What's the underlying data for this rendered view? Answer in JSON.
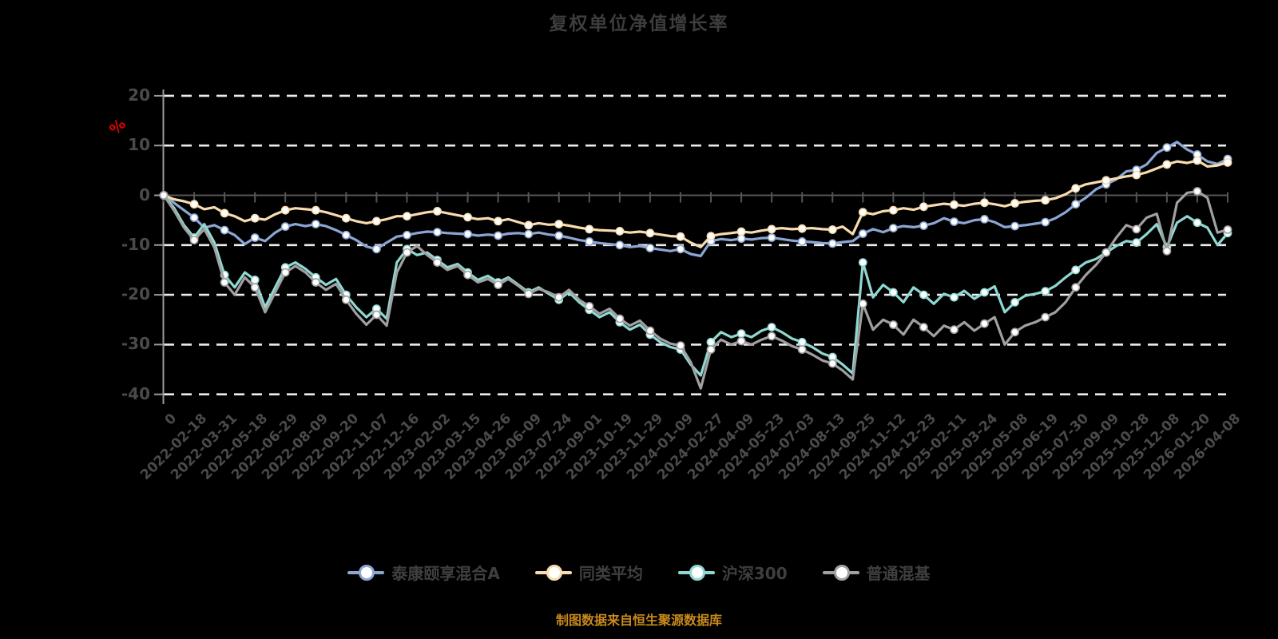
{
  "title": "复权单位净值增长率",
  "y_axis_unit": "%",
  "footer_note": "制图数据来自恒生聚源数据库",
  "colors": {
    "background": "#000000",
    "title_text": "#3d3d3d",
    "axis_label_text": "#4a4a4a",
    "unit_label_red": "#e00000",
    "footer_orange": "#c8891c",
    "gridline": "#ececec",
    "y_axis_line": "#9a9a9a",
    "x_axis_line": "#555555",
    "legend_text": "#3f3f3f"
  },
  "chart_data": {
    "type": "line",
    "title": "复权单位净值增长率",
    "xlabel": "",
    "ylabel": "%",
    "ylim": [
      -40,
      20
    ],
    "y_ticks": [
      20,
      10,
      0,
      -10,
      -20,
      -30,
      -40
    ],
    "grid": "horizontal dashed white lines, x axis drawn at 0 with tick marks",
    "legend_position": "bottom",
    "x_tick_labels": [
      "0",
      "2022-02-18",
      "2022-03-31",
      "2022-05-18",
      "2022-06-29",
      "2022-08-09",
      "2022-09-20",
      "2022-11-07",
      "2022-12-16",
      "2023-02-02",
      "2023-03-15",
      "2023-04-26",
      "2023-06-09",
      "2023-07-24",
      "2023-09-01",
      "2023-10-19",
      "2023-11-29",
      "2024-01-09",
      "2024-02-27",
      "2024-04-09",
      "2024-05-23",
      "2024-07-03",
      "2024-08-13",
      "2024-09-25",
      "2024-11-12",
      "2024-12-23",
      "2025-02-11",
      "2025-03-24",
      "2025-05-08",
      "2025-06-19",
      "2025-07-30",
      "2025-09-09",
      "2025-10-28",
      "2025-12-08",
      "2026-01-20",
      "2026-04-08"
    ],
    "sampling_note": "values are % growth sampled at 3 evenly spaced points per x-tick interval (106 points spanning the 36 ticks)",
    "series": [
      {
        "name": "泰康颐享混合A",
        "color": "#8ca6d4",
        "values": [
          0,
          -1.5,
          -3,
          -4.5,
          -6.5,
          -6,
          -7,
          -8,
          -9.8,
          -8.5,
          -9.2,
          -7.5,
          -6.3,
          -5.8,
          -6.2,
          -5.8,
          -6.2,
          -7,
          -8,
          -9,
          -10.3,
          -10.8,
          -9.5,
          -8.3,
          -8,
          -7.6,
          -7.3,
          -7.4,
          -7.6,
          -7.7,
          -7.8,
          -8.1,
          -7.9,
          -8.1,
          -7.7,
          -7.6,
          -7.8,
          -7.5,
          -7.9,
          -8.1,
          -8.5,
          -9,
          -9.3,
          -9.6,
          -9.8,
          -10,
          -10.4,
          -10.2,
          -10.6,
          -10.9,
          -11.2,
          -10.8,
          -11.8,
          -12.2,
          -9.2,
          -8.8,
          -9,
          -8.7,
          -8.9,
          -8.6,
          -8.5,
          -8.8,
          -9.1,
          -9.3,
          -9.4,
          -9.6,
          -9.7,
          -9.4,
          -9.2,
          -7.7,
          -6.8,
          -7.4,
          -6.6,
          -6.2,
          -6.4,
          -6.1,
          -5.6,
          -4.6,
          -5.3,
          -5.6,
          -5,
          -4.8,
          -5.4,
          -6.4,
          -6.2,
          -6,
          -5.7,
          -5.4,
          -4.6,
          -3.4,
          -1.8,
          -0.5,
          1.2,
          2.2,
          3.2,
          4.8,
          5.1,
          6.2,
          8.5,
          9.6,
          10.7,
          9.2,
          8.2,
          6.8,
          6.3,
          7.3
        ]
      },
      {
        "name": "同类平均",
        "color": "#f8dcae",
        "values": [
          0,
          -0.8,
          -1.2,
          -1.8,
          -2.8,
          -2.4,
          -3.6,
          -4.2,
          -5.2,
          -4.6,
          -4.9,
          -3.8,
          -3,
          -2.6,
          -2.8,
          -3,
          -3.4,
          -4,
          -4.6,
          -5.2,
          -5.6,
          -5.2,
          -4.8,
          -4.2,
          -4.2,
          -3.8,
          -3.4,
          -3.2,
          -3.6,
          -4,
          -4.4,
          -4.8,
          -4.6,
          -5.2,
          -4.8,
          -5.4,
          -6,
          -5.6,
          -5.9,
          -5.8,
          -6.1,
          -6.5,
          -6.8,
          -7,
          -7.1,
          -7.2,
          -7.5,
          -7.3,
          -7.6,
          -7.9,
          -8.2,
          -8.3,
          -9.5,
          -10.4,
          -8.2,
          -7.8,
          -7.6,
          -7.3,
          -7.5,
          -7.1,
          -6.8,
          -6.6,
          -6.8,
          -6.7,
          -6.6,
          -6.8,
          -6.9,
          -6.3,
          -7.8,
          -3.4,
          -3.8,
          -3.2,
          -3,
          -2.6,
          -2.9,
          -2.3,
          -2,
          -1.7,
          -1.9,
          -2.1,
          -1.7,
          -1.5,
          -1.8,
          -2.2,
          -1.6,
          -1.3,
          -1.1,
          -1,
          -0.6,
          0.2,
          1.4,
          2.2,
          2.6,
          3,
          3.4,
          3.8,
          4.1,
          4.6,
          5.4,
          6.2,
          6.8,
          6.5,
          7,
          5.8,
          6,
          6.6
        ]
      },
      {
        "name": "沪深300",
        "color": "#8fd8d2",
        "values": [
          0,
          -2.5,
          -6,
          -8.5,
          -5.8,
          -9.5,
          -16,
          -18.5,
          -15.5,
          -17,
          -22.5,
          -18.5,
          -14.5,
          -13.5,
          -14.8,
          -16.5,
          -18,
          -16.8,
          -20,
          -22.5,
          -24.5,
          -22.8,
          -24.8,
          -13.5,
          -10.8,
          -12,
          -11.5,
          -13,
          -14.5,
          -13.8,
          -15.5,
          -17,
          -16.2,
          -17.5,
          -16.5,
          -18,
          -19.5,
          -18.5,
          -19.8,
          -21,
          -19.5,
          -21.5,
          -23,
          -24.5,
          -23.5,
          -25.5,
          -27,
          -26,
          -28,
          -29.5,
          -30.5,
          -31,
          -34,
          -36.2,
          -29.5,
          -27.5,
          -28.5,
          -27.8,
          -28.5,
          -27.2,
          -26.5,
          -27.5,
          -28.8,
          -29.5,
          -30.5,
          -31.8,
          -32.5,
          -34,
          -35.8,
          -13.5,
          -20.5,
          -18,
          -19.5,
          -21.5,
          -18.5,
          -20,
          -21.8,
          -19.8,
          -20.5,
          -19.2,
          -20.8,
          -19.5,
          -18.3,
          -23.5,
          -21.5,
          -20.2,
          -19.8,
          -19.3,
          -18.2,
          -16.5,
          -15,
          -13.5,
          -12.8,
          -11.5,
          -10.2,
          -9.2,
          -9.5,
          -7.8,
          -5.8,
          -10.4,
          -5.5,
          -4.2,
          -5.5,
          -6.5,
          -10,
          -7.6
        ]
      },
      {
        "name": "普通混基",
        "color": "#a0a0a0",
        "values": [
          0,
          -3,
          -6.5,
          -9,
          -6.8,
          -10.5,
          -17.5,
          -20,
          -16.5,
          -18.5,
          -23.5,
          -19.5,
          -15.5,
          -14.2,
          -15.5,
          -17.5,
          -19,
          -17.8,
          -21,
          -23.8,
          -26,
          -24,
          -26.2,
          -15.5,
          -11.5,
          -10.2,
          -12,
          -13.5,
          -15,
          -14.2,
          -16,
          -17.5,
          -16.8,
          -18,
          -16.8,
          -18.2,
          -19.8,
          -18.8,
          -19.5,
          -20.5,
          -19,
          -21,
          -22.3,
          -23.8,
          -22.8,
          -24.8,
          -26.2,
          -25.2,
          -27.2,
          -28.8,
          -29.8,
          -30.2,
          -33.5,
          -38.8,
          -31,
          -29,
          -30,
          -29.3,
          -30,
          -29,
          -28.3,
          -29.2,
          -30.3,
          -31,
          -32,
          -33.2,
          -33.8,
          -35.2,
          -37,
          -21.8,
          -27,
          -25,
          -26,
          -28,
          -25,
          -26.5,
          -28.3,
          -26.2,
          -27,
          -25.5,
          -27.2,
          -25.8,
          -24.5,
          -30,
          -27.5,
          -26.2,
          -25.5,
          -24.5,
          -23.5,
          -21.5,
          -18.5,
          -16,
          -14,
          -11.5,
          -8.5,
          -6,
          -6.8,
          -4.5,
          -3.7,
          -11.2,
          -1.5,
          0.5,
          0.8,
          -0.5,
          -7.5,
          -6.9
        ]
      }
    ]
  }
}
